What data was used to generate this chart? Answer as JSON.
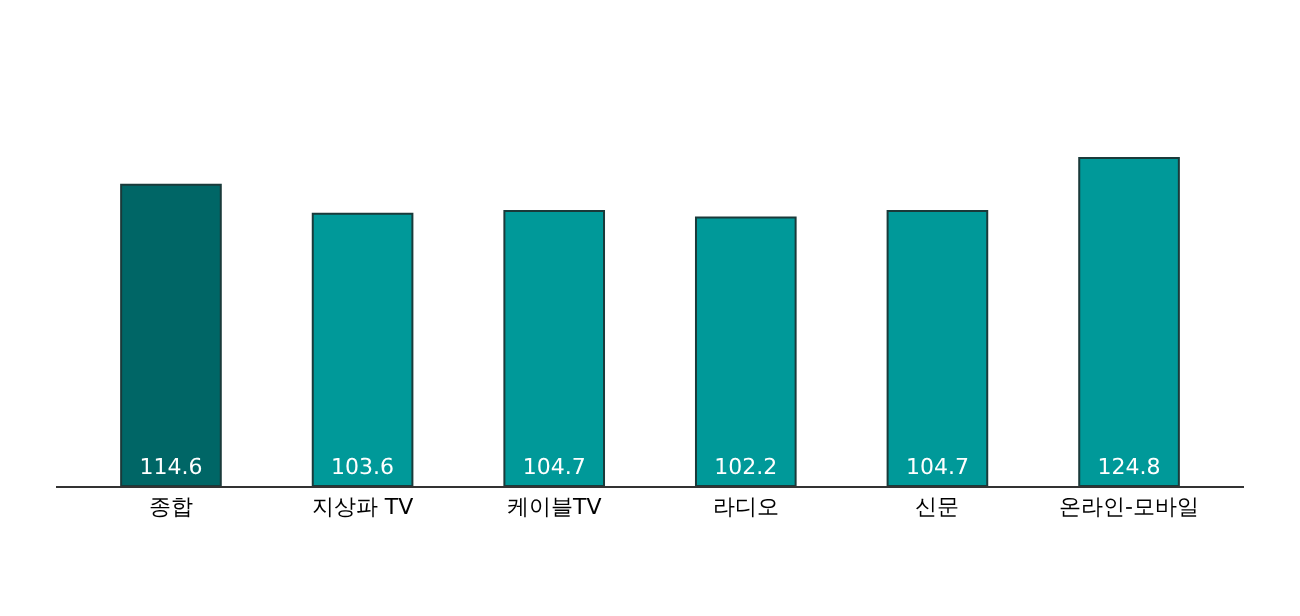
{
  "chart_data": {
    "type": "bar",
    "categories": [
      "종합",
      "지상파 TV",
      "케이블TV",
      "라디오",
      "신문",
      "온라인-모바일"
    ],
    "values": [
      114.6,
      103.6,
      104.7,
      102.2,
      104.7,
      124.8
    ],
    "colors": [
      "#006666",
      "#009999",
      "#009999",
      "#009999",
      "#009999",
      "#009999"
    ],
    "data_labels": true
  }
}
